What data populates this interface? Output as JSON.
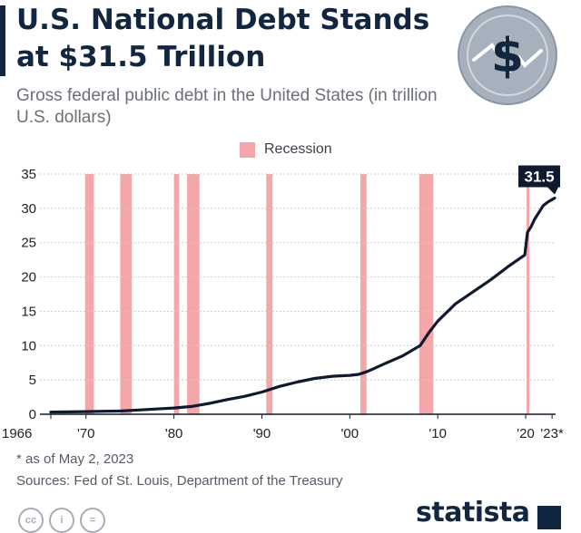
{
  "header": {
    "title": "U.S. National Debt Stands at $31.5 Trillion",
    "subtitle": "Gross federal public debt in the United States (in trillion U.S. dollars)",
    "emblem_icon": "dollar-sign-circle-icon"
  },
  "legend": {
    "label": "Recession",
    "color": "#f4a6a8"
  },
  "chart_data": {
    "type": "line",
    "title": "U.S. National Debt Stands at $31.5 Trillion",
    "subtitle": "Gross federal public debt in the United States (in trillion U.S. dollars)",
    "xlabel": "",
    "ylabel": "",
    "xlim": [
      1966,
      2023.4
    ],
    "ylim": [
      0,
      35
    ],
    "y_ticks": [
      0,
      5,
      10,
      15,
      20,
      25,
      30,
      35
    ],
    "x_ticks": [
      {
        "value": 1966,
        "label": "1966"
      },
      {
        "value": 1970,
        "label": "'70"
      },
      {
        "value": 1980,
        "label": "'80"
      },
      {
        "value": 1990,
        "label": "'90"
      },
      {
        "value": 2000,
        "label": "'00"
      },
      {
        "value": 2010,
        "label": "'10"
      },
      {
        "value": 2020,
        "label": "'20"
      },
      {
        "value": 2023,
        "label": "'23*"
      }
    ],
    "grid": true,
    "line_color": "#0f1a2e",
    "series": [
      {
        "x": [
          1966,
          1968,
          1970,
          1972,
          1974,
          1976,
          1978,
          1980,
          1982,
          1984,
          1986,
          1988,
          1990,
          1992,
          1994,
          1996,
          1998,
          2000,
          2001,
          2002,
          2004,
          2006,
          2008,
          2009,
          2010,
          2012,
          2014,
          2016,
          2018,
          2019.9,
          2020.2,
          2020.6,
          2021,
          2022,
          2022.5,
          2023.3
        ],
        "values": [
          0.32,
          0.35,
          0.38,
          0.43,
          0.48,
          0.62,
          0.77,
          0.91,
          1.14,
          1.57,
          2.12,
          2.6,
          3.23,
          4.06,
          4.69,
          5.22,
          5.53,
          5.67,
          5.81,
          6.23,
          7.38,
          8.51,
          10.0,
          11.9,
          13.56,
          16.07,
          17.82,
          19.57,
          21.52,
          23.2,
          26.5,
          27.3,
          28.4,
          30.4,
          30.9,
          31.5
        ]
      }
    ],
    "recessions": [
      [
        1969.9,
        1970.9
      ],
      [
        1973.9,
        1975.2
      ],
      [
        1980.0,
        1980.6
      ],
      [
        1981.5,
        1982.9
      ],
      [
        1990.5,
        1991.2
      ],
      [
        2001.2,
        2001.9
      ],
      [
        2007.9,
        2009.5
      ],
      [
        2020.1,
        2020.4
      ]
    ],
    "end_label": "31.5"
  },
  "footnote": "* as of May 2, 2023",
  "source": "Sources: Fed of St. Louis, Department of the Treasury",
  "license_icons": [
    "cc-icon",
    "by-icon",
    "nd-icon"
  ],
  "license_glyphs": [
    "cc",
    "i",
    "="
  ],
  "brand": "statista"
}
